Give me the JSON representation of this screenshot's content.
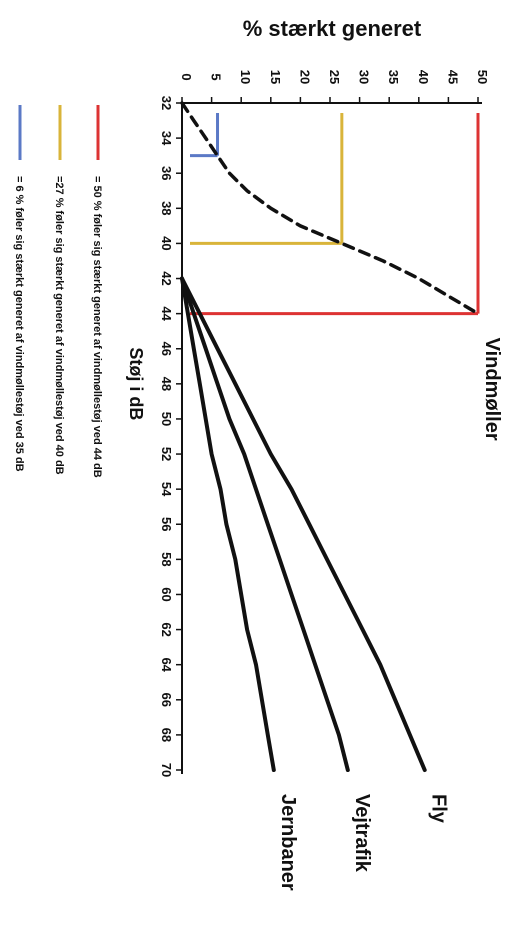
{
  "chart_data": {
    "type": "line",
    "title": "% stærkt generet",
    "xlabel": "Støj i dB",
    "ylabel": "% stærkt generet",
    "xlim": [
      32,
      70
    ],
    "ylim": [
      0,
      50
    ],
    "x_ticks": [
      32,
      34,
      36,
      38,
      40,
      42,
      44,
      46,
      48,
      50,
      52,
      54,
      56,
      58,
      60,
      62,
      64,
      66,
      68,
      70
    ],
    "y_ticks": [
      0,
      5,
      10,
      15,
      20,
      25,
      30,
      35,
      40,
      45,
      50
    ],
    "orientation": "rotated-90-clockwise",
    "series": [
      {
        "name": "Vindmøller",
        "style": "dashed",
        "color": "#111111",
        "points": [
          [
            32,
            0
          ],
          [
            33,
            2
          ],
          [
            34,
            4
          ],
          [
            35,
            6
          ],
          [
            36,
            8
          ],
          [
            37,
            11
          ],
          [
            38,
            15
          ],
          [
            39,
            20
          ],
          [
            40,
            27
          ],
          [
            41,
            34
          ],
          [
            42,
            40
          ],
          [
            43,
            45
          ],
          [
            44,
            50
          ]
        ]
      },
      {
        "name": "Fly",
        "style": "solid",
        "color": "#111111",
        "points": [
          [
            42,
            0
          ],
          [
            44,
            3
          ],
          [
            46,
            6
          ],
          [
            48,
            9
          ],
          [
            50,
            12
          ],
          [
            52,
            15
          ],
          [
            54,
            18.5
          ],
          [
            56,
            21.5
          ],
          [
            58,
            24.5
          ],
          [
            60,
            27.5
          ],
          [
            62,
            30.5
          ],
          [
            64,
            33.5
          ],
          [
            66,
            36
          ],
          [
            68,
            38.5
          ],
          [
            70,
            41
          ]
        ]
      },
      {
        "name": "Vejtrafik",
        "style": "solid",
        "color": "#111111",
        "points": [
          [
            42,
            0
          ],
          [
            44,
            2
          ],
          [
            46,
            4
          ],
          [
            48,
            6
          ],
          [
            50,
            8
          ],
          [
            52,
            10.5
          ],
          [
            54,
            12.5
          ],
          [
            56,
            14.5
          ],
          [
            58,
            16.5
          ],
          [
            60,
            18.5
          ],
          [
            62,
            20.5
          ],
          [
            64,
            22.5
          ],
          [
            66,
            24.5
          ],
          [
            68,
            26.5
          ],
          [
            70,
            28
          ]
        ]
      },
      {
        "name": "Jernbaner",
        "style": "solid",
        "color": "#111111",
        "points": [
          [
            42,
            0
          ],
          [
            44,
            1
          ],
          [
            46,
            2
          ],
          [
            48,
            3
          ],
          [
            50,
            4
          ],
          [
            52,
            5
          ],
          [
            54,
            6.5
          ],
          [
            56,
            7.5
          ],
          [
            58,
            9
          ],
          [
            60,
            10
          ],
          [
            62,
            11
          ],
          [
            64,
            12.5
          ],
          [
            66,
            13.5
          ],
          [
            68,
            14.5
          ],
          [
            70,
            15.5
          ]
        ]
      }
    ],
    "markers": [
      {
        "color": "#dd3333",
        "x": 44,
        "y": 50,
        "legend": "= 50 % føler sig stærkt generet af vindmøllestøj ved 44 dB"
      },
      {
        "color": "#d9b43a",
        "x": 40,
        "y": 27,
        "legend": "=27 % føler sig stærkt generet af vindmøllestøj ved 40 dB"
      },
      {
        "color": "#5b79c6",
        "x": 35,
        "y": 6,
        "legend": "=  6 % føler sig stærkt generet af vindmøllestøj ved 35 dB"
      }
    ]
  }
}
